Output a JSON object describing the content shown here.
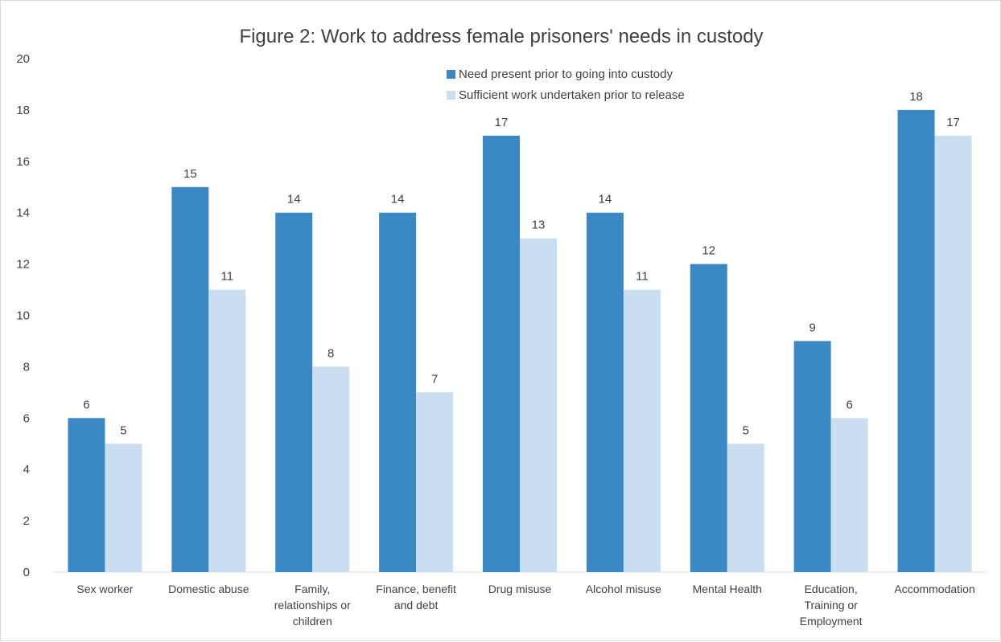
{
  "chart_data": {
    "type": "bar",
    "title": "Figure 2: Work to address female prisoners' needs in custody",
    "xlabel": "",
    "ylabel": "",
    "ylim": [
      0,
      20
    ],
    "yticks": [
      "0",
      "2",
      "4",
      "6",
      "8",
      "10",
      "12",
      "14",
      "16",
      "18",
      "20"
    ],
    "grid": false,
    "legend_position": "top-right",
    "categories": [
      "Sex worker",
      "Domestic abuse",
      "Family, relationships or children",
      "Finance, benefit and debt",
      "Drug misuse",
      "Alcohol misuse",
      "Mental Health",
      "Education, Training or Employment",
      "Accommodation"
    ],
    "category_lines": [
      [
        "Sex worker"
      ],
      [
        "Domestic abuse"
      ],
      [
        "Family,",
        "relationships or",
        "children"
      ],
      [
        "Finance, benefit",
        "and debt"
      ],
      [
        "Drug misuse"
      ],
      [
        "Alcohol misuse"
      ],
      [
        "Mental Health"
      ],
      [
        "Education,",
        "Training or",
        "Employment"
      ],
      [
        "Accommodation"
      ]
    ],
    "series": [
      {
        "name": "Need present prior to going into custody",
        "color": "#3a88c4",
        "values": [
          6,
          15,
          14,
          14,
          17,
          14,
          12,
          9,
          18
        ]
      },
      {
        "name": "Sufficient work undertaken prior to release",
        "color": "#c9dff1",
        "values": [
          5,
          11,
          8,
          7,
          13,
          11,
          5,
          6,
          17
        ]
      }
    ]
  }
}
